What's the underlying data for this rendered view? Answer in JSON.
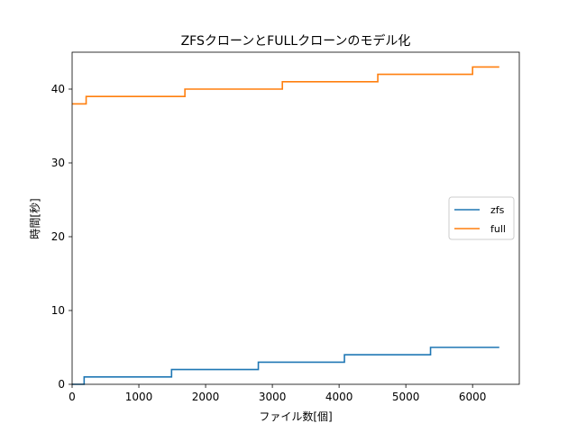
{
  "chart_data": {
    "type": "line",
    "title": "ZFSクローンとFULLクローンのモデル化",
    "xlabel": "ファイル数[個]",
    "ylabel": "時間[秒]",
    "xlim": [
      0,
      6700
    ],
    "ylim": [
      0,
      45
    ],
    "xticks": [
      "0",
      "1000",
      "2000",
      "3000",
      "4000",
      "5000",
      "6000"
    ],
    "yticks": [
      "0",
      "10",
      "20",
      "30",
      "40"
    ],
    "grid": false,
    "legend_position": "center-right",
    "line_style": "step",
    "series": [
      {
        "name": "zfs",
        "color": "#1f77b4",
        "x": [
          0,
          180,
          180,
          1490,
          1490,
          2790,
          2790,
          4080,
          4080,
          5370,
          5370,
          6400
        ],
        "y": [
          0,
          0,
          1,
          1,
          2,
          2,
          3,
          3,
          4,
          4,
          5,
          5
        ]
      },
      {
        "name": "full",
        "color": "#ff7f0e",
        "x": [
          0,
          210,
          210,
          1690,
          1690,
          3150,
          3150,
          4580,
          4580,
          6000,
          6000,
          6400
        ],
        "y": [
          38,
          38,
          39,
          39,
          40,
          40,
          41,
          41,
          42,
          42,
          43,
          43
        ]
      }
    ]
  }
}
